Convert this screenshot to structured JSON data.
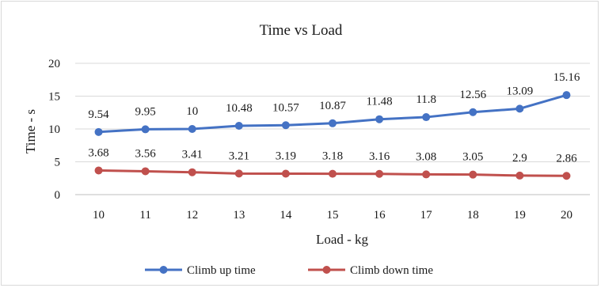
{
  "chart_data": {
    "type": "line",
    "title": "Time vs Load",
    "xlabel": "Load - kg",
    "ylabel": "Time - s",
    "categories": [
      "10",
      "11",
      "12",
      "13",
      "14",
      "15",
      "16",
      "17",
      "18",
      "19",
      "20"
    ],
    "ylim": [
      0,
      20
    ],
    "yticks": [
      "0",
      "5",
      "10",
      "15",
      "20"
    ],
    "grid": true,
    "legend_position": "bottom",
    "series": [
      {
        "name": "Climb up time",
        "color": "#4472c4",
        "values": [
          9.54,
          9.95,
          10,
          10.48,
          10.57,
          10.87,
          11.48,
          11.8,
          12.56,
          13.09,
          15.16
        ],
        "labels": [
          "9.54",
          "9.95",
          "10",
          "10.48",
          "10.57",
          "10.87",
          "11.48",
          "11.8",
          "12.56",
          "13.09",
          "15.16"
        ]
      },
      {
        "name": "Climb down time",
        "color": "#c0504d",
        "values": [
          3.68,
          3.56,
          3.41,
          3.21,
          3.19,
          3.18,
          3.16,
          3.08,
          3.05,
          2.9,
          2.86
        ],
        "labels": [
          "3.68",
          "3.56",
          "3.41",
          "3.21",
          "3.19",
          "3.18",
          "3.16",
          "3.08",
          "3.05",
          "2.9",
          "2.86"
        ]
      }
    ]
  }
}
